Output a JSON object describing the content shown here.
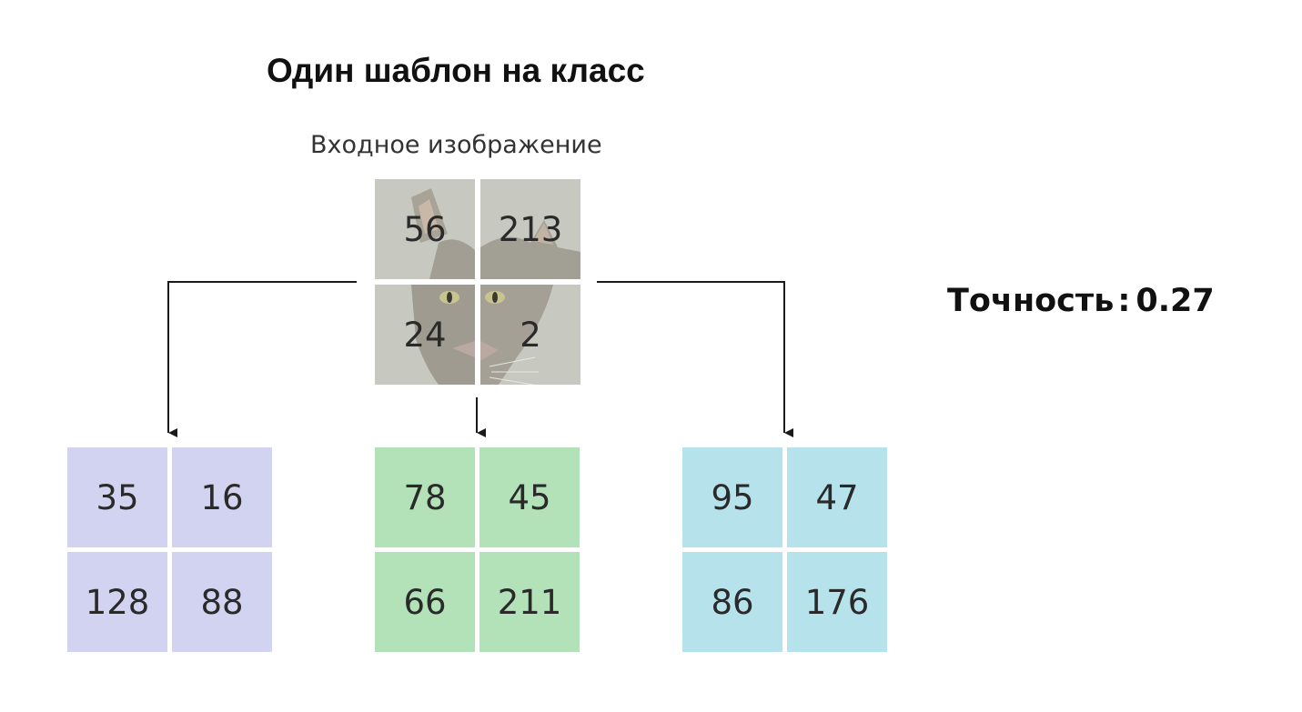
{
  "title": "Один шаблон на класс",
  "input_label": "Входное изображение",
  "accuracy": {
    "label": "Точность",
    "separator": ":",
    "value": "0.27"
  },
  "input_image": {
    "cells": [
      "56",
      "213",
      "24",
      "2"
    ]
  },
  "templates": [
    {
      "color": "#d2d3f1",
      "cells": [
        "35",
        "16",
        "128",
        "88"
      ]
    },
    {
      "color": "#b3e2b9",
      "cells": [
        "78",
        "45",
        "66",
        "211"
      ]
    },
    {
      "color": "#b6e2ec",
      "cells": [
        "95",
        "47",
        "86",
        "176"
      ]
    }
  ]
}
